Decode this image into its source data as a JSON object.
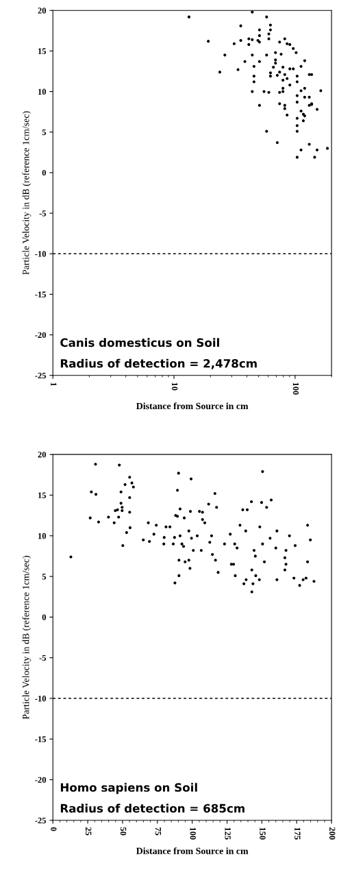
{
  "chart_data": [
    {
      "type": "scatter",
      "xlabel": "Distance from Source in cm",
      "ylabel": "Particle Velocity in dB (reference 1cm/sec)",
      "log": "x",
      "xlim": [
        1,
        200
      ],
      "xticks": [
        1,
        10,
        100
      ],
      "ylim": [
        -25,
        20
      ],
      "yticks": [
        -25,
        -20,
        -15,
        -10,
        -5,
        0,
        5,
        10,
        15,
        20
      ],
      "grid": false,
      "legend": false,
      "marker": "circle",
      "ref_lines": [
        {
          "axis": "y",
          "value": -10,
          "line_style": "dashed",
          "color": "#000000"
        }
      ],
      "annotations": [
        "Canis domesticus on Soil",
        "Radius of detection = 2,478cm"
      ],
      "series": [
        {
          "color": "#000000",
          "x": [
            13.3,
            19.2,
            23.9,
            26.3,
            31.4,
            33.8,
            35.6,
            35.6,
            38.5,
            41.5,
            41.5,
            44.3,
            44.3,
            44.3,
            44.3,
            45.8,
            45.8,
            45.8,
            49.3,
            50.8,
            50.8,
            50.8,
            50.8,
            50.8,
            55.4,
            58.2,
            58.2,
            58.2,
            60.7,
            60.7,
            60.7,
            62.6,
            62.6,
            62.6,
            62.6,
            66.2,
            68.9,
            68.9,
            68.9,
            71.3,
            71.3,
            74.5,
            74.5,
            74.5,
            74.5,
            76.7,
            79.4,
            79.4,
            79.4,
            79.4,
            82.2,
            82.2,
            82.2,
            82.2,
            85.9,
            85.9,
            85.9,
            90.5,
            90.5,
            90.5,
            96.6,
            96.6,
            102,
            104,
            104,
            104,
            104,
            104,
            104,
            104,
            104,
            112,
            112,
            112,
            112,
            117,
            117,
            120,
            120,
            120,
            120,
            131,
            131,
            131,
            131,
            137,
            137,
            137,
            145,
            152,
            152,
            163,
            185
          ],
          "values": [
            19.2,
            16.2,
            12.4,
            14.5,
            15.9,
            12.7,
            16.3,
            18.1,
            13.7,
            15.8,
            16.5,
            19.8,
            14.5,
            16.4,
            10.0,
            13.1,
            11.9,
            11.2,
            16.3,
            17.6,
            16.9,
            8.3,
            13.7,
            16.1,
            10.0,
            19.2,
            14.5,
            5.1,
            16.5,
            17.1,
            9.9,
            17.6,
            18.2,
            12.3,
            11.9,
            13.0,
            14.8,
            13.9,
            13.5,
            3.7,
            12.0,
            16.1,
            9.9,
            8.5,
            12.4,
            14.6,
            13.0,
            11.4,
            10.4,
            10.0,
            16.5,
            12.1,
            8.3,
            7.9,
            7.1,
            15.9,
            11.6,
            15.8,
            10.8,
            12.8,
            15.3,
            12.8,
            14.8,
            11.9,
            11.2,
            9.5,
            8.7,
            6.7,
            5.8,
            5.1,
            1.9,
            2.8,
            13.1,
            10.1,
            7.6,
            7.2,
            6.4,
            13.8,
            10.4,
            9.3,
            7.0,
            12.1,
            3.5,
            9.3,
            8.3,
            12.1,
            8.4,
            8.5,
            1.9,
            2.8,
            7.8,
            10.1,
            3.0
          ]
        }
      ]
    },
    {
      "type": "scatter",
      "xlabel": "Distance from Source in cm",
      "ylabel": "Particle Velocity in dB (reference 1cm/sec)",
      "xlim": [
        0,
        200
      ],
      "xticks": [
        0,
        25,
        50,
        75,
        100,
        125,
        150,
        175,
        200
      ],
      "ylim": [
        -25,
        20
      ],
      "yticks": [
        -25,
        -20,
        -15,
        -10,
        -5,
        0,
        5,
        10,
        15,
        20
      ],
      "grid": false,
      "legend": false,
      "marker": "circle",
      "ref_lines": [
        {
          "axis": "y",
          "value": -10,
          "line_style": "dashed",
          "color": "#000000"
        }
      ],
      "annotations": [
        "Homo sapiens on Soil",
        "Radius of detection = 685cm"
      ],
      "series": [
        {
          "color": "#000000",
          "x": [
            12.9,
            26.8,
            27.6,
            30.6,
            30.9,
            32.8,
            39.9,
            44.0,
            44.8,
            46.4,
            47.2,
            47.7,
            48.9,
            48.9,
            49.7,
            49.7,
            50.2,
            51.8,
            52.9,
            55.1,
            55.1,
            55.1,
            55.4,
            56.7,
            57.8,
            64.9,
            68.5,
            69.3,
            72.5,
            74.2,
            79.6,
            79.9,
            81.2,
            84.0,
            86.4,
            87.3,
            87.6,
            88.1,
            89.4,
            89.4,
            90.2,
            90.5,
            90.5,
            91.3,
            91.3,
            92.6,
            93.8,
            94.3,
            94.9,
            97.6,
            97.6,
            98.4,
            98.7,
            99.2,
            99.5,
            100.8,
            103.6,
            105.2,
            106.5,
            107.4,
            107.4,
            109.0,
            111.8,
            112.6,
            113.9,
            114.5,
            116.3,
            116.7,
            117.5,
            118.6,
            123.2,
            127.3,
            128.1,
            129.7,
            130.5,
            132.2,
            130.9,
            134.3,
            136.3,
            137.1,
            138.4,
            138.7,
            139.5,
            142.5,
            142.8,
            144.4,
            145.3,
            145.6,
            143.6,
            148.2,
            148.5,
            149.8,
            150.5,
            150.5,
            151.8,
            153.4,
            155.9,
            156.7,
            160.0,
            160.8,
            160.8,
            166.5,
            167.3,
            167.3,
            166.5,
            169.8,
            173.0,
            173.9,
            177.1,
            179.6,
            181.7,
            182.8,
            182.8,
            184.8,
            187.4,
            142.8
          ],
          "values": [
            7.4,
            12.2,
            15.4,
            18.8,
            15.1,
            11.7,
            12.3,
            11.6,
            13.1,
            13.2,
            12.3,
            18.7,
            15.4,
            14.0,
            13.5,
            13.1,
            8.8,
            16.3,
            10.4,
            17.2,
            14.7,
            12.9,
            11.0,
            16.5,
            16.0,
            9.5,
            11.6,
            9.3,
            10.2,
            11.3,
            9.0,
            9.8,
            11.1,
            11.1,
            9.0,
            9.8,
            4.2,
            12.5,
            15.6,
            12.4,
            17.7,
            7.0,
            5.1,
            13.3,
            10.0,
            9.0,
            8.7,
            12.2,
            6.8,
            10.6,
            7.0,
            6.0,
            13.0,
            17.0,
            9.7,
            8.2,
            10.0,
            13.0,
            8.2,
            12.9,
            12.0,
            11.6,
            13.9,
            9.2,
            10.0,
            7.7,
            15.2,
            7.0,
            13.5,
            5.5,
            9.0,
            10.2,
            6.5,
            6.5,
            9.0,
            8.5,
            5.1,
            11.3,
            13.2,
            4.1,
            10.6,
            4.6,
            13.2,
            14.2,
            5.8,
            8.2,
            7.5,
            5.1,
            4.1,
            4.6,
            11.1,
            14.1,
            17.9,
            9.0,
            6.8,
            13.5,
            9.7,
            14.4,
            8.5,
            10.6,
            4.6,
            7.3,
            6.5,
            8.2,
            5.8,
            10.0,
            4.8,
            8.8,
            3.9,
            4.6,
            4.8,
            6.8,
            11.3,
            9.5,
            4.4,
            3.1
          ]
        }
      ]
    }
  ]
}
